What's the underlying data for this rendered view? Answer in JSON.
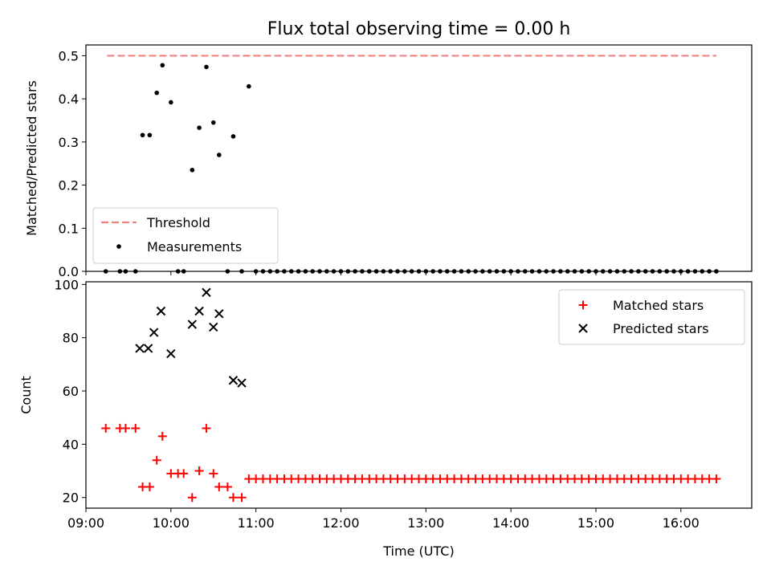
{
  "colors": {
    "threshold": "#f08080",
    "measurement": "#000000",
    "matched": "#ff0000",
    "predicted": "#000000"
  },
  "chart_data": [
    {
      "type": "scatter",
      "title": "Flux total observing time = 0.00 h",
      "xlabel": "",
      "ylabel": "Matched/Predicted stars",
      "xlim": [
        "09:00",
        "16:50"
      ],
      "ylim": [
        0,
        0.525
      ],
      "yticks": [
        "0.0",
        "0.1",
        "0.2",
        "0.3",
        "0.4",
        "0.5"
      ],
      "grid": false,
      "legend_position": "lower-left",
      "series": [
        {
          "name": "Threshold",
          "style": "dashed-line",
          "x": [
            "09:15",
            "16:25"
          ],
          "y": [
            0.5,
            0.5
          ]
        },
        {
          "name": "Measurements",
          "style": "dot",
          "x": [
            "09:14",
            "09:24",
            "09:28",
            "09:35",
            "09:40",
            "09:45",
            "09:50",
            "09:54",
            "10:00",
            "10:05",
            "10:09",
            "10:15",
            "10:20",
            "10:25",
            "10:30",
            "10:34",
            "10:40",
            "10:44",
            "10:50",
            "10:55",
            "11:00",
            "11:05",
            "11:10",
            "11:15",
            "11:20",
            "11:25",
            "11:30",
            "11:35",
            "11:40",
            "11:45",
            "11:50",
            "11:55",
            "12:00",
            "12:05",
            "12:10",
            "12:15",
            "12:20",
            "12:25",
            "12:30",
            "12:35",
            "12:40",
            "12:45",
            "12:50",
            "12:55",
            "13:00",
            "13:05",
            "13:10",
            "13:15",
            "13:20",
            "13:25",
            "13:30",
            "13:35",
            "13:40",
            "13:45",
            "13:50",
            "13:55",
            "14:00",
            "14:05",
            "14:10",
            "14:15",
            "14:20",
            "14:25",
            "14:30",
            "14:35",
            "14:40",
            "14:45",
            "14:50",
            "14:55",
            "15:00",
            "15:05",
            "15:10",
            "15:15",
            "15:20",
            "15:25",
            "15:30",
            "15:35",
            "15:40",
            "15:45",
            "15:50",
            "15:55",
            "16:00",
            "16:05",
            "16:10",
            "16:15",
            "16:20",
            "16:25"
          ],
          "y": [
            0,
            0,
            0,
            0,
            0.316,
            0.316,
            0.414,
            0.478,
            0.392,
            0,
            0,
            0.235,
            0.333,
            0.474,
            0.345,
            0.27,
            0,
            0.313,
            0,
            0.429,
            0,
            0,
            0,
            0,
            0,
            0,
            0,
            0,
            0,
            0,
            0,
            0,
            0,
            0,
            0,
            0,
            0,
            0,
            0,
            0,
            0,
            0,
            0,
            0,
            0,
            0,
            0,
            0,
            0,
            0,
            0,
            0,
            0,
            0,
            0,
            0,
            0,
            0,
            0,
            0,
            0,
            0,
            0,
            0,
            0,
            0,
            0,
            0,
            0,
            0,
            0,
            0,
            0,
            0,
            0,
            0,
            0,
            0,
            0,
            0,
            0,
            0,
            0,
            0,
            0,
            0
          ]
        }
      ]
    },
    {
      "type": "scatter",
      "title": "",
      "xlabel": "Time (UTC)",
      "ylabel": "Count",
      "xlim": [
        "09:00",
        "16:50"
      ],
      "ylim": [
        16,
        101
      ],
      "yticks": [
        "20",
        "40",
        "60",
        "80",
        "100"
      ],
      "xticks": [
        "09:00",
        "10:00",
        "11:00",
        "12:00",
        "13:00",
        "14:00",
        "15:00",
        "16:00"
      ],
      "grid": false,
      "legend_position": "upper-right",
      "series": [
        {
          "name": "Matched stars",
          "style": "plus",
          "x": [
            "09:14",
            "09:24",
            "09:28",
            "09:35",
            "09:40",
            "09:45",
            "09:50",
            "09:54",
            "10:00",
            "10:05",
            "10:09",
            "10:15",
            "10:20",
            "10:25",
            "10:30",
            "10:34",
            "10:40",
            "10:44",
            "10:50",
            "10:55",
            "11:00",
            "11:05",
            "11:10",
            "11:15",
            "11:20",
            "11:25",
            "11:30",
            "11:35",
            "11:40",
            "11:45",
            "11:50",
            "11:55",
            "12:00",
            "12:05",
            "12:10",
            "12:15",
            "12:20",
            "12:25",
            "12:30",
            "12:35",
            "12:40",
            "12:45",
            "12:50",
            "12:55",
            "13:00",
            "13:05",
            "13:10",
            "13:15",
            "13:20",
            "13:25",
            "13:30",
            "13:35",
            "13:40",
            "13:45",
            "13:50",
            "13:55",
            "14:00",
            "14:05",
            "14:10",
            "14:15",
            "14:20",
            "14:25",
            "14:30",
            "14:35",
            "14:40",
            "14:45",
            "14:50",
            "14:55",
            "15:00",
            "15:05",
            "15:10",
            "15:15",
            "15:20",
            "15:25",
            "15:30",
            "15:35",
            "15:40",
            "15:45",
            "15:50",
            "15:55",
            "16:00",
            "16:05",
            "16:10",
            "16:15",
            "16:20",
            "16:25"
          ],
          "y": [
            46,
            46,
            46,
            46,
            24,
            24,
            34,
            43,
            29,
            29,
            29,
            20,
            30,
            46,
            29,
            24,
            24,
            20,
            20,
            27,
            27,
            27,
            27,
            27,
            27,
            27,
            27,
            27,
            27,
            27,
            27,
            27,
            27,
            27,
            27,
            27,
            27,
            27,
            27,
            27,
            27,
            27,
            27,
            27,
            27,
            27,
            27,
            27,
            27,
            27,
            27,
            27,
            27,
            27,
            27,
            27,
            27,
            27,
            27,
            27,
            27,
            27,
            27,
            27,
            27,
            27,
            27,
            27,
            27,
            27,
            27,
            27,
            27,
            27,
            27,
            27,
            27,
            27,
            27,
            27,
            27,
            27,
            27,
            27,
            27,
            27
          ]
        },
        {
          "name": "Predicted stars",
          "style": "x",
          "x": [
            "09:38",
            "09:44",
            "09:48",
            "09:53",
            "10:00",
            "10:15",
            "10:20",
            "10:25",
            "10:30",
            "10:34",
            "10:44",
            "10:50"
          ],
          "y": [
            76,
            76,
            82,
            90,
            74,
            85,
            90,
            97,
            84,
            89,
            64,
            63
          ]
        }
      ]
    }
  ]
}
